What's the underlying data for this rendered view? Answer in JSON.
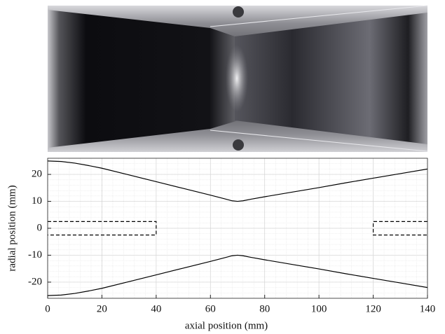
{
  "chart_data": {
    "type": "line",
    "xlabel": "axial position (mm)",
    "ylabel": "radial position (mm)",
    "xlim": [
      0,
      140
    ],
    "xticks": [
      0,
      20,
      40,
      60,
      80,
      100,
      120,
      140
    ],
    "ylim": [
      -26,
      26
    ],
    "yticks": [
      -20,
      -10,
      0,
      10,
      20
    ],
    "grid": true,
    "minor_grid": true,
    "series": [
      {
        "color": "#000000",
        "dash": "solid",
        "x": [
          0,
          5,
          10,
          15,
          20,
          30,
          40,
          50,
          60,
          65,
          68,
          70,
          72,
          75,
          80,
          90,
          100,
          110,
          120,
          130,
          140
        ],
        "values": [
          25,
          24.8,
          24.2,
          23.3,
          22.3,
          19.8,
          17.3,
          14.8,
          12.3,
          11,
          10.2,
          10,
          10.2,
          10.8,
          11.7,
          13.4,
          15.1,
          16.9,
          18.6,
          20.3,
          22
        ]
      },
      {
        "color": "#000000",
        "dash": "solid",
        "x": [
          0,
          5,
          10,
          15,
          20,
          30,
          40,
          50,
          60,
          65,
          68,
          70,
          72,
          75,
          80,
          90,
          100,
          110,
          120,
          130,
          140
        ],
        "values": [
          -25,
          -24.8,
          -24.2,
          -23.3,
          -22.3,
          -19.8,
          -17.3,
          -14.8,
          -12.3,
          -11,
          -10.2,
          -10,
          -10.2,
          -10.8,
          -11.7,
          -13.4,
          -15.1,
          -16.9,
          -18.6,
          -20.3,
          -22
        ]
      },
      {
        "color": "#000000",
        "dash": "dashed",
        "x": [
          0,
          40,
          40,
          0
        ],
        "values": [
          2.5,
          2.5,
          -2.5,
          -2.5
        ]
      },
      {
        "color": "#000000",
        "dash": "dashed",
        "x": [
          140,
          120,
          120,
          140
        ],
        "values": [
          2.5,
          2.5,
          -2.5,
          -2.5
        ]
      }
    ]
  }
}
